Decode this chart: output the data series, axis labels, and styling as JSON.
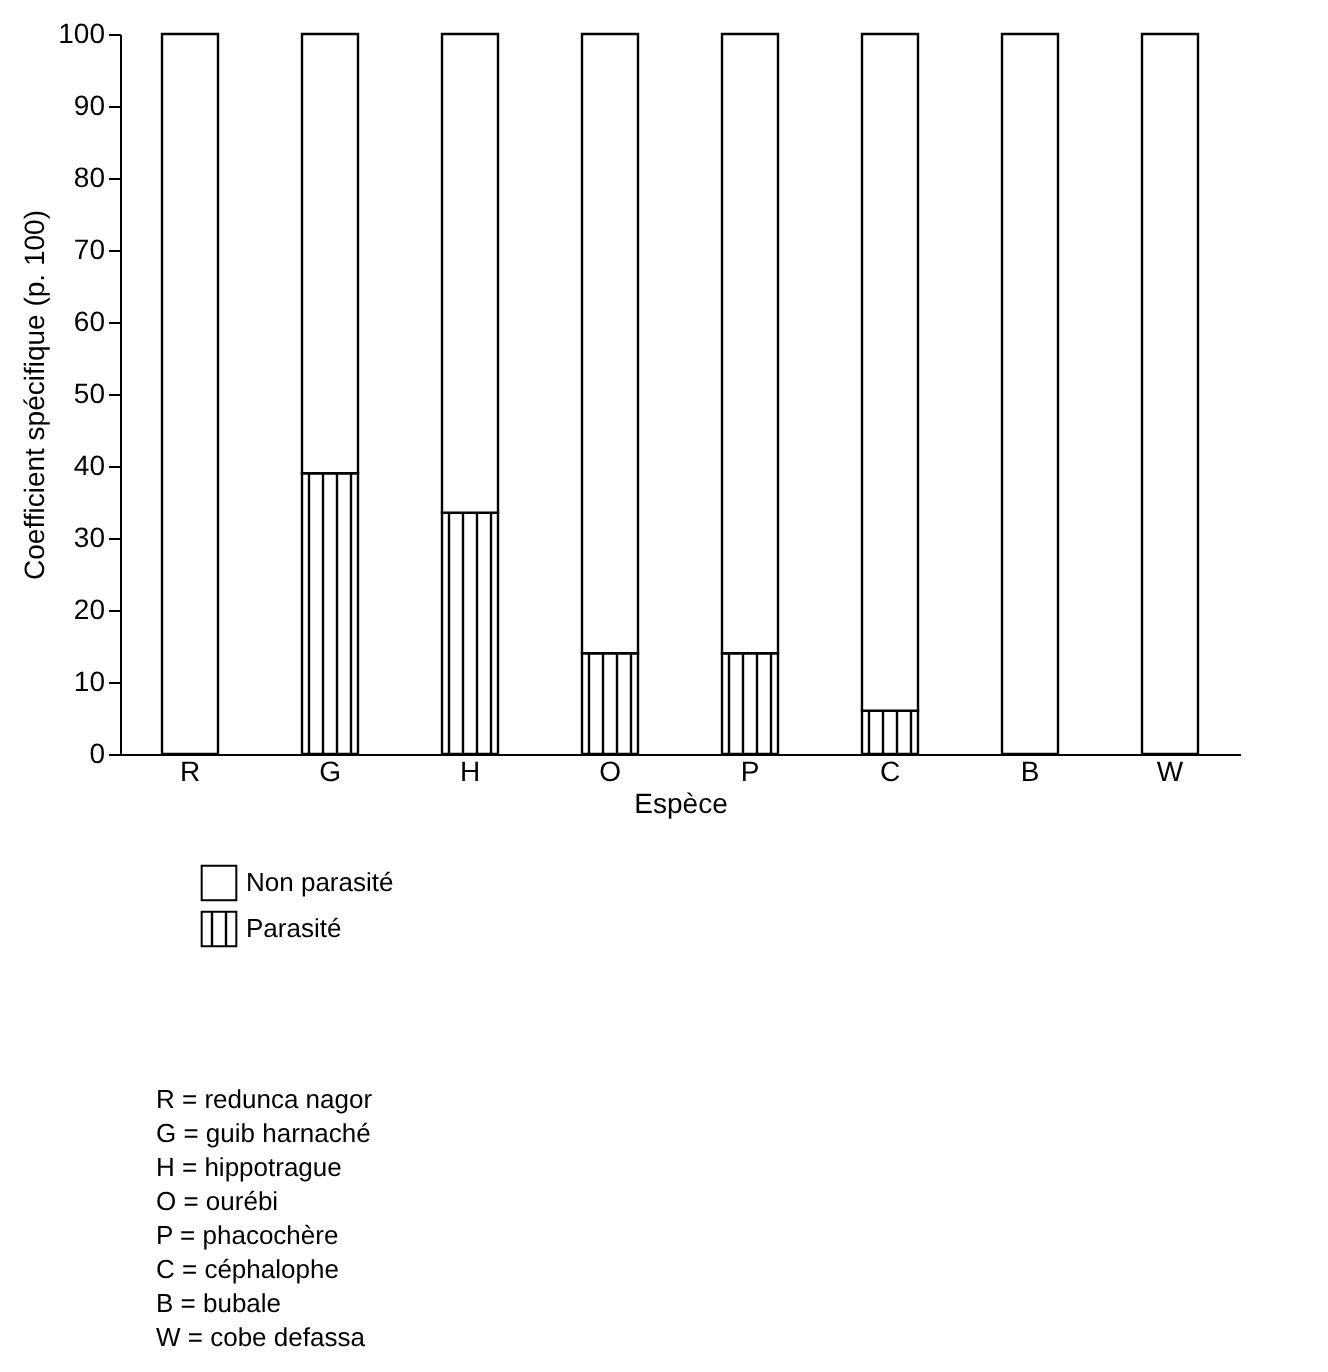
{
  "chart_data": {
    "type": "bar",
    "stacked": true,
    "xlabel": "Espèce",
    "ylabel": "Coefficient spécifique (p. 100)",
    "categories": [
      "R",
      "G",
      "H",
      "O",
      "P",
      "C",
      "B",
      "W"
    ],
    "series": [
      {
        "name": "Parasité",
        "color": "#000000",
        "values": [
          0,
          39,
          33.5,
          14,
          14,
          6,
          0,
          0
        ]
      },
      {
        "name": "Non parasité",
        "color": "#ffffff",
        "values": [
          100,
          61,
          66.5,
          86,
          86,
          94,
          100,
          100
        ]
      }
    ],
    "ylim": [
      0,
      100
    ],
    "yticks": [
      0,
      10,
      20,
      30,
      40,
      50,
      60,
      70,
      80,
      90,
      100
    ],
    "grid": false,
    "legend": "bottom left",
    "annotations": [
      "R = redunca nagor",
      "G = guib harnaché",
      "H = hippotrague",
      "O = ourébi",
      "P = phacochère",
      "C = céphalophe",
      "B = bubale",
      "W = cobe defassa"
    ]
  }
}
